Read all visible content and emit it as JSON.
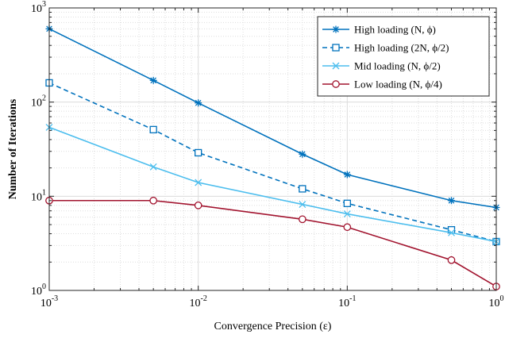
{
  "chart_data": {
    "type": "line",
    "title": "",
    "xlabel": "Convergence Precision (ε)",
    "ylabel": "Number of Iterations",
    "xscale": "log",
    "yscale": "log",
    "xlim": [
      0.001,
      1
    ],
    "ylim": [
      1,
      1000
    ],
    "grid": true,
    "legend_position": "top-right",
    "x_ticks": [
      {
        "value": 0.001,
        "base": "10",
        "exp": "-3"
      },
      {
        "value": 0.01,
        "base": "10",
        "exp": "-2"
      },
      {
        "value": 0.1,
        "base": "10",
        "exp": "-1"
      },
      {
        "value": 1,
        "base": "10",
        "exp": "0"
      }
    ],
    "y_ticks": [
      {
        "value": 1,
        "base": "10",
        "exp": "0"
      },
      {
        "value": 10,
        "base": "10",
        "exp": "1"
      },
      {
        "value": 100,
        "base": "10",
        "exp": "2"
      },
      {
        "value": 1000,
        "base": "10",
        "exp": "3"
      }
    ],
    "x": [
      0.001,
      0.005,
      0.01,
      0.05,
      0.1,
      0.5,
      1
    ],
    "series": [
      {
        "name": "High loading (N, ϕ)",
        "color": "#0072BD",
        "dash": "solid",
        "marker": "asterisk",
        "values": [
          600,
          170,
          98,
          28,
          17,
          9,
          7.6
        ]
      },
      {
        "name": "High loading (2N, ϕ/2)",
        "color": "#0072BD",
        "dash": "dashed",
        "marker": "square",
        "values": [
          160,
          51,
          29,
          12,
          8.4,
          4.4,
          3.3
        ]
      },
      {
        "name": "Mid loading (N, ϕ/2)",
        "color": "#4DBEEE",
        "dash": "solid",
        "marker": "x",
        "values": [
          54,
          20.5,
          14,
          8.2,
          6.5,
          4.1,
          3.3
        ]
      },
      {
        "name": "Low loading (N, ϕ/4)",
        "color": "#A2142F",
        "dash": "solid",
        "marker": "circle",
        "values": [
          9,
          9,
          8,
          5.7,
          4.7,
          2.1,
          1.1
        ]
      }
    ]
  }
}
